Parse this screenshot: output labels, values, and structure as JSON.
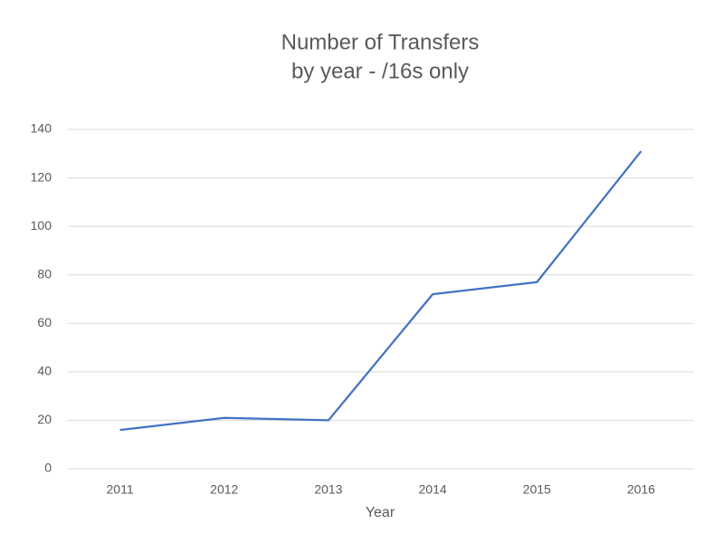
{
  "chart_data": {
    "type": "line",
    "title": "Number of Transfers",
    "subtitle": "by year - /16s only",
    "x_label": "Year",
    "categories": [
      "2011",
      "2012",
      "2013",
      "2014",
      "2015",
      "2016"
    ],
    "series": [
      {
        "color": "#4472c4",
        "values": [
          16,
          21,
          20,
          72,
          77,
          131
        ]
      }
    ],
    "ylim": [
      0,
      140
    ],
    "yticks": [
      0,
      20,
      40,
      60,
      80,
      100,
      120,
      140
    ],
    "grid": true
  }
}
